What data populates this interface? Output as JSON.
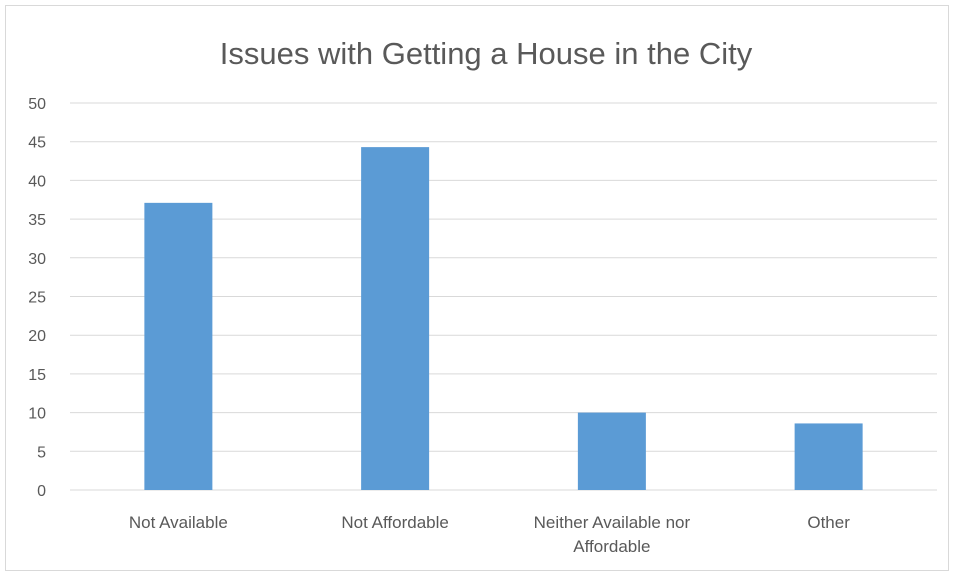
{
  "chart_data": {
    "type": "bar",
    "title": "Issues with Getting a House in the City",
    "categories": [
      "Not Available",
      "Not Affordable",
      "Neither Available nor Affordable",
      "Other"
    ],
    "category_label_lines": [
      [
        "Not Available"
      ],
      [
        "Not Affordable"
      ],
      [
        "Neither Available nor",
        "Affordable"
      ],
      [
        "Other"
      ]
    ],
    "values": [
      37.1,
      44.3,
      10,
      8.6
    ],
    "ylim": [
      0,
      50
    ],
    "yticks": [
      "0",
      "5",
      "10",
      "15",
      "20",
      "25",
      "30",
      "35",
      "40",
      "45",
      "50"
    ],
    "xlabel": "",
    "ylabel": "",
    "grid": true,
    "legend": "none",
    "bar_color": "#5b9bd5",
    "grid_color": "#d9d9d9"
  }
}
